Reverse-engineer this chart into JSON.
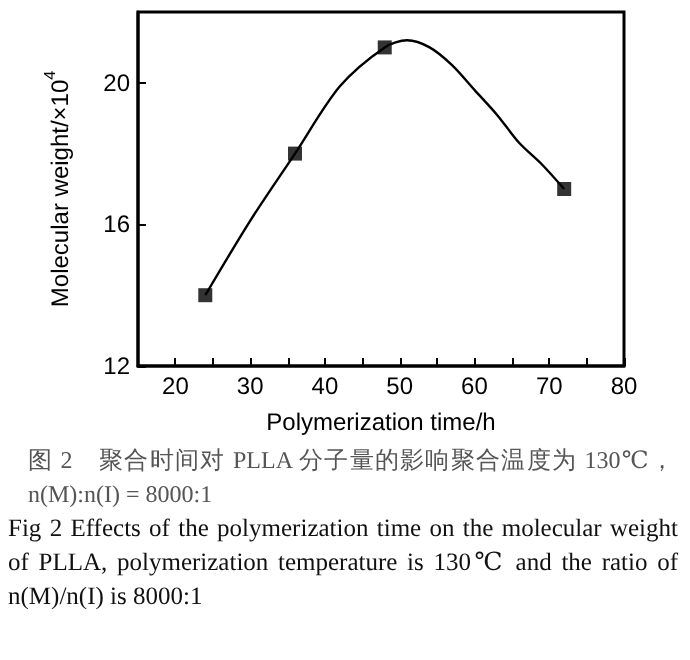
{
  "chart_data": {
    "type": "scatter",
    "xlabel": "Polymerization time/h",
    "ylabel": "Molecular weight/×10$^{4}$",
    "marker": "square",
    "grid": false,
    "xlim": [
      15,
      80
    ],
    "xticks": [
      20,
      {
        "value": 25,
        "label": null
      },
      30,
      {
        "value": 35,
        "label": null
      },
      40,
      {
        "value": 45,
        "label": null
      },
      50,
      {
        "value": 55,
        "label": null
      },
      60,
      {
        "value": 65,
        "label": null
      },
      70,
      {
        "value": 75,
        "label": null
      },
      80
    ],
    "ylim": [
      12,
      22
    ],
    "yticks": [
      12,
      16,
      20
    ],
    "series": [
      {
        "color": "#000000",
        "x": [
          24,
          36,
          48,
          72
        ],
        "values": [
          14,
          18,
          21,
          17
        ]
      },
      {
        "type": "line",
        "color": "#000000",
        "marker": "none",
        "line_style": "solid",
        "x": [
          24,
          30,
          36,
          42,
          48,
          51,
          54,
          57,
          60,
          63,
          66,
          69,
          72
        ],
        "values": [
          14,
          16.1,
          18,
          19.9,
          21,
          21.2,
          21.0,
          20.5,
          19.8,
          19.1,
          18.3,
          17.7,
          17
        ]
      }
    ],
    "annotations": [
      "图 2　聚合时间对 PLLA 分子量的影响聚合温度为 130℃，n(M):n(I) = 8000:1",
      "Fig 2 Effects of the polymerization time on the molecular weight of PLLA, polymerization temperature is 130℃ and the ratio of n(M)/n(I) is 8000:1"
    ]
  }
}
